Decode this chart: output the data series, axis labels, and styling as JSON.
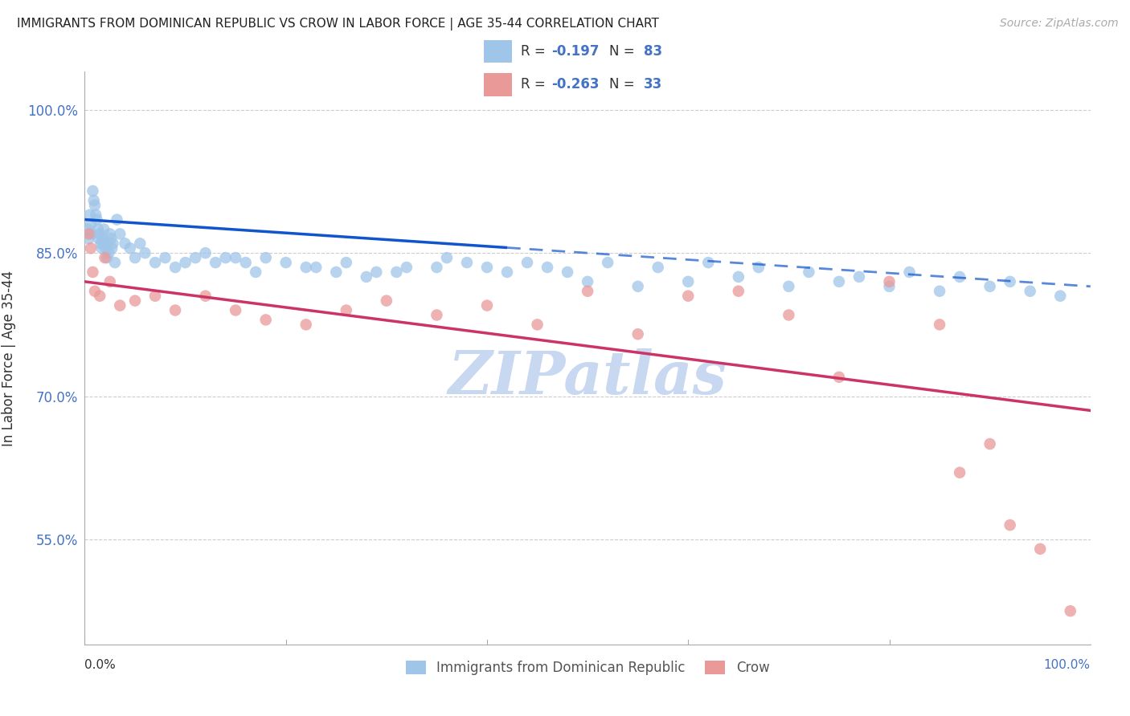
{
  "title": "IMMIGRANTS FROM DOMINICAN REPUBLIC VS CROW IN LABOR FORCE | AGE 35-44 CORRELATION CHART",
  "source": "Source: ZipAtlas.com",
  "ylabel": "In Labor Force | Age 35-44",
  "xlim": [
    0.0,
    100.0
  ],
  "ylim": [
    44.0,
    104.0
  ],
  "yticks": [
    55.0,
    70.0,
    85.0,
    100.0
  ],
  "blue_color": "#9fc5e8",
  "pink_color": "#ea9999",
  "blue_line_color": "#1155cc",
  "pink_line_color": "#cc3366",
  "r_blue": -0.197,
  "n_blue": 83,
  "r_pink": -0.263,
  "n_pink": 33,
  "blue_line_y0": 88.5,
  "blue_line_y100": 81.5,
  "pink_line_y0": 82.0,
  "pink_line_y100": 68.5,
  "blue_solid_xmax": 42.0,
  "watermark_text": "ZIPatlas",
  "watermark_color": "#c8d8f0",
  "background_color": "#ffffff",
  "grid_color": "#cccccc",
  "legend_label_blue": "Immigrants from Dominican Republic",
  "legend_label_pink": "Crow",
  "blue_x": [
    0.3,
    0.4,
    0.5,
    0.6,
    0.7,
    0.8,
    0.9,
    1.0,
    1.1,
    1.2,
    1.3,
    1.4,
    1.5,
    1.6,
    1.7,
    1.8,
    1.9,
    2.0,
    2.1,
    2.2,
    2.3,
    2.4,
    2.5,
    2.6,
    2.7,
    2.8,
    3.0,
    3.2,
    3.5,
    4.0,
    4.5,
    5.0,
    5.5,
    6.0,
    7.0,
    8.0,
    9.0,
    11.0,
    13.0,
    15.0,
    17.0,
    20.0,
    23.0,
    26.0,
    29.0,
    32.0,
    36.0,
    40.0,
    44.0,
    48.0,
    52.0,
    57.0,
    62.0,
    67.0,
    72.0,
    77.0,
    82.0,
    87.0,
    92.0,
    10.0,
    12.0,
    14.0,
    16.0,
    18.0,
    22.0,
    25.0,
    28.0,
    31.0,
    35.0,
    38.0,
    42.0,
    46.0,
    50.0,
    55.0,
    60.0,
    65.0,
    70.0,
    75.0,
    80.0,
    85.0,
    90.0,
    94.0,
    97.0
  ],
  "blue_y": [
    87.5,
    86.5,
    89.0,
    88.0,
    87.0,
    91.5,
    90.5,
    90.0,
    89.0,
    88.5,
    87.5,
    86.5,
    87.0,
    86.0,
    85.5,
    86.5,
    87.5,
    86.0,
    85.5,
    84.5,
    86.0,
    85.0,
    87.0,
    86.5,
    85.5,
    86.0,
    84.0,
    88.5,
    87.0,
    86.0,
    85.5,
    84.5,
    86.0,
    85.0,
    84.0,
    84.5,
    83.5,
    84.5,
    84.0,
    84.5,
    83.0,
    84.0,
    83.5,
    84.0,
    83.0,
    83.5,
    84.5,
    83.5,
    84.0,
    83.0,
    84.0,
    83.5,
    84.0,
    83.5,
    83.0,
    82.5,
    83.0,
    82.5,
    82.0,
    84.0,
    85.0,
    84.5,
    84.0,
    84.5,
    83.5,
    83.0,
    82.5,
    83.0,
    83.5,
    84.0,
    83.0,
    83.5,
    82.0,
    81.5,
    82.0,
    82.5,
    81.5,
    82.0,
    81.5,
    81.0,
    81.5,
    81.0,
    80.5
  ],
  "pink_x": [
    0.4,
    0.6,
    0.8,
    1.0,
    1.5,
    2.0,
    2.5,
    3.5,
    5.0,
    7.0,
    9.0,
    12.0,
    15.0,
    18.0,
    22.0,
    26.0,
    30.0,
    35.0,
    40.0,
    45.0,
    50.0,
    55.0,
    60.0,
    65.0,
    70.0,
    75.0,
    80.0,
    85.0,
    87.0,
    90.0,
    92.0,
    95.0,
    98.0
  ],
  "pink_y": [
    87.0,
    85.5,
    83.0,
    81.0,
    80.5,
    84.5,
    82.0,
    79.5,
    80.0,
    80.5,
    79.0,
    80.5,
    79.0,
    78.0,
    77.5,
    79.0,
    80.0,
    78.5,
    79.5,
    77.5,
    81.0,
    76.5,
    80.5,
    81.0,
    78.5,
    72.0,
    82.0,
    77.5,
    62.0,
    65.0,
    56.5,
    54.0,
    47.5
  ]
}
